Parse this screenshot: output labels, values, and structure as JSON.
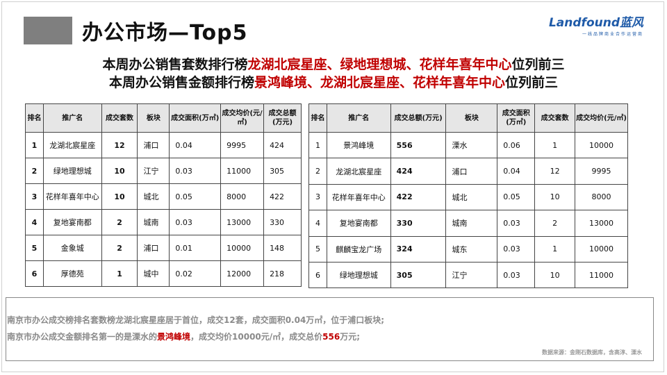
{
  "title": "办公市场—Top5",
  "logo": {
    "main": "Landfound蓝风",
    "sub": "一线品牌商业合作运营商"
  },
  "headline1": {
    "prefix": "本周办公销售套数排行榜",
    "highlight": "龙湖北宸星座、绿地理想城、花样年喜年中心",
    "suffix": "位列前三"
  },
  "headline2": {
    "prefix": "本周办公销售金额排行榜",
    "highlight": "景鸿峰境、龙湖北宸星座、花样年喜年中心",
    "suffix": "位列前三"
  },
  "table_units": {
    "headers": [
      "排名",
      "推广名",
      "成交套数",
      "板块",
      "成交面积(万㎡)",
      "成交均价(元/㎡)",
      "成交总额(万元)"
    ],
    "rows": [
      [
        "1",
        "龙湖北宸星座",
        "12",
        "浦口",
        "0.04",
        "9995",
        "424"
      ],
      [
        "2",
        "绿地理想城",
        "10",
        "江宁",
        "0.03",
        "11000",
        "305"
      ],
      [
        "3",
        "花样年喜年中心",
        "10",
        "城北",
        "0.05",
        "8000",
        "422"
      ],
      [
        "4",
        "复地宴南都",
        "2",
        "城南",
        "0.03",
        "13000",
        "330"
      ],
      [
        "5",
        "金象城",
        "2",
        "浦口",
        "0.01",
        "10000",
        "148"
      ],
      [
        "6",
        "厚德苑",
        "1",
        "城中",
        "0.02",
        "12000",
        "218"
      ]
    ]
  },
  "table_amount": {
    "headers": [
      "排名",
      "推广名",
      "成交总额(万元)",
      "板块",
      "成交面积(万㎡)",
      "成交套数",
      "成交均价(元/㎡)"
    ],
    "rows": [
      [
        "1",
        "景鸿峰境",
        "556",
        "溧水",
        "0.06",
        "1",
        "10000"
      ],
      [
        "2",
        "龙湖北宸星座",
        "424",
        "浦口",
        "0.04",
        "12",
        "9995"
      ],
      [
        "3",
        "花样年喜年中心",
        "422",
        "城北",
        "0.05",
        "10",
        "8000"
      ],
      [
        "4",
        "复地宴南都",
        "330",
        "城南",
        "0.03",
        "2",
        "13000"
      ],
      [
        "5",
        "麒麟宝龙广场",
        "324",
        "城东",
        "0.03",
        "1",
        "10000"
      ],
      [
        "6",
        "绿地理想城",
        "305",
        "江宁",
        "0.03",
        "10",
        "11000"
      ]
    ]
  },
  "summary": {
    "line1": "南京市办公成交榜排名套数榜龙湖北宸星座居于首位，成交12套，成交面积0.04万㎡，位于浦口板块;",
    "line2_prefix": "南京市办公成交金额排名第一的是溧水的",
    "line2_highlight1": "景鸿峰境",
    "line2_mid": "，成交均价10000元/㎡，成交总价",
    "line2_highlight2": "556",
    "line2_suffix": "万元;"
  },
  "source": "数据来源：金刚石数据库，含高淳、溧水",
  "colors": {
    "highlight": "#c00000",
    "logo": "#1e5aa8",
    "header_bg": "#e6e6e6",
    "title_block": "#7f7f7f"
  }
}
